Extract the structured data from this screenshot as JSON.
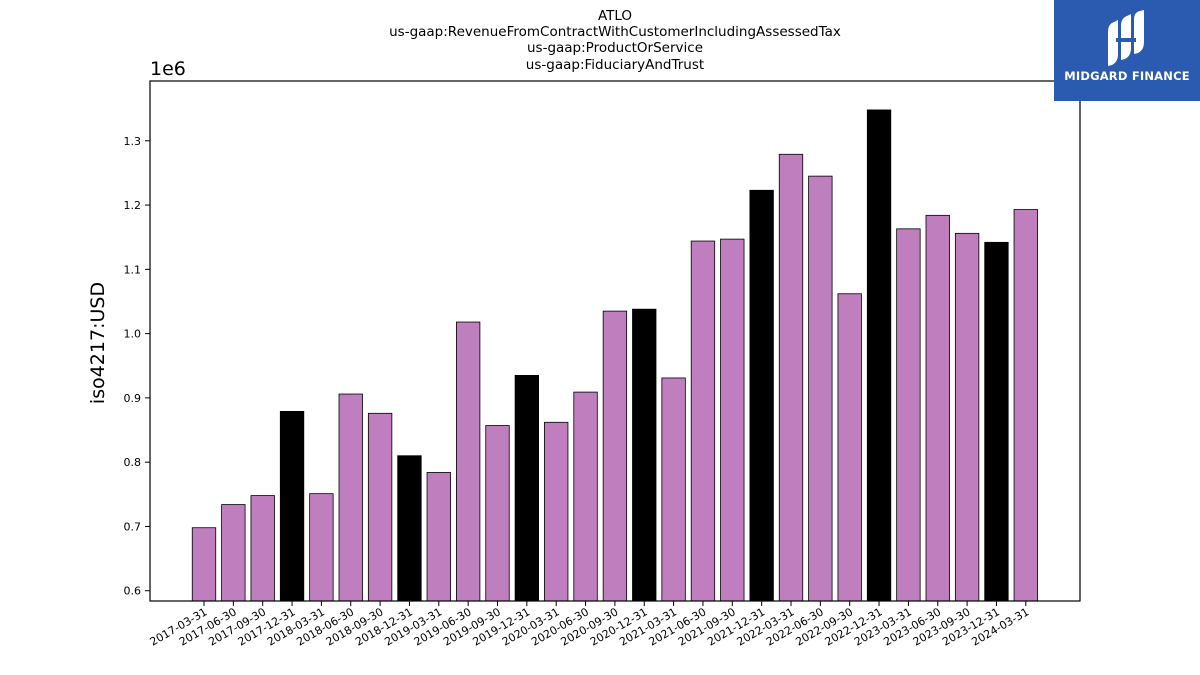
{
  "logo": {
    "text": "MIDGARD FINANCE",
    "icon": "midgard-mi-logo-icon",
    "background": "#2a5bb0"
  },
  "chart_data": {
    "type": "bar",
    "title_lines": [
      "ATLO",
      "us-gaap:RevenueFromContractWithCustomerIncludingAssessedTax",
      "us-gaap:ProductOrService",
      "us-gaap:FiduciaryAndTrust"
    ],
    "ylabel": "iso4217:USD",
    "y_offset_label": "1e6",
    "ylim": [
      584000,
      1393000
    ],
    "yticks": [
      600000,
      700000,
      800000,
      900000,
      1000000,
      1100000,
      1200000,
      1300000
    ],
    "ytick_labels": [
      "0.6",
      "0.7",
      "0.8",
      "0.9",
      "1.0",
      "1.1",
      "1.2",
      "1.3"
    ],
    "grid": false,
    "colors": {
      "quarter": "#bf7fbf",
      "year_end": "#000000",
      "edge": "#000000"
    },
    "categories": [
      "2017-03-31",
      "2017-06-30",
      "2017-09-30",
      "2017-12-31",
      "2018-03-31",
      "2018-06-30",
      "2018-09-30",
      "2018-12-31",
      "2019-03-31",
      "2019-06-30",
      "2019-09-30",
      "2019-12-31",
      "2020-03-31",
      "2020-06-30",
      "2020-09-30",
      "2020-12-31",
      "2021-03-31",
      "2021-06-30",
      "2021-09-30",
      "2021-12-31",
      "2022-03-31",
      "2022-06-30",
      "2022-09-30",
      "2022-12-31",
      "2023-03-31",
      "2023-06-30",
      "2023-09-30",
      "2023-12-31",
      "2024-03-31"
    ],
    "values": [
      698000,
      734000,
      748000,
      879000,
      751000,
      906000,
      876000,
      810000,
      784000,
      1018000,
      857000,
      935000,
      862000,
      909000,
      1035000,
      1038000,
      931000,
      1144000,
      1147000,
      1223000,
      1279000,
      1245000,
      1062000,
      1348000,
      1163000,
      1184000,
      1156000,
      1142000,
      1193000
    ],
    "highlight": [
      false,
      false,
      false,
      true,
      false,
      false,
      false,
      true,
      false,
      false,
      false,
      true,
      false,
      false,
      false,
      true,
      false,
      false,
      false,
      true,
      false,
      false,
      false,
      true,
      false,
      false,
      false,
      true,
      false
    ]
  }
}
